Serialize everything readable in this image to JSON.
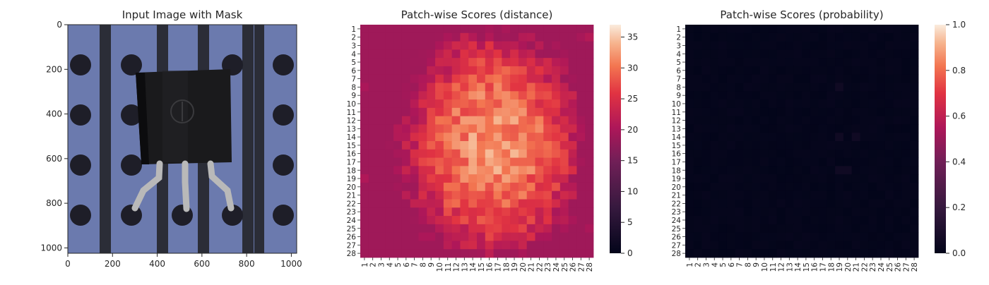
{
  "chart_data": [
    {
      "type": "image",
      "title": "Input Image with Mask",
      "xlim": [
        0,
        1024
      ],
      "ylim": [
        1024,
        0
      ],
      "x_ticks": [
        0,
        200,
        400,
        600,
        800,
        1000
      ],
      "y_ticks": [
        0,
        200,
        400,
        600,
        800,
        1000
      ],
      "content": "transistor on perforated board"
    },
    {
      "type": "heatmap",
      "title": "Patch-wise Scores (distance)",
      "rows": 28,
      "cols": 28,
      "row_labels": [
        "1",
        "2",
        "3",
        "4",
        "5",
        "6",
        "7",
        "8",
        "9",
        "10",
        "11",
        "12",
        "13",
        "14",
        "15",
        "16",
        "17",
        "18",
        "19",
        "20",
        "21",
        "22",
        "23",
        "24",
        "25",
        "26",
        "27",
        "28"
      ],
      "col_labels": [
        "1",
        "2",
        "3",
        "4",
        "5",
        "6",
        "7",
        "8",
        "9",
        "10",
        "11",
        "12",
        "13",
        "14",
        "15",
        "16",
        "17",
        "18",
        "19",
        "20",
        "21",
        "22",
        "23",
        "24",
        "25",
        "26",
        "27",
        "28"
      ],
      "colorbar": {
        "vmin": 0,
        "vmax": 37,
        "ticks": [
          0,
          5,
          10,
          15,
          20,
          25,
          30,
          35
        ]
      },
      "colormap": "rocket",
      "value_range_observed": [
        19,
        37
      ],
      "high_region": "center and center-right (rows 4-26, cols 7-24)",
      "low_spots": "left edge column 1-2, right edge column 27-28, bottom row"
    },
    {
      "type": "heatmap",
      "title": "Patch-wise Scores (probability)",
      "rows": 28,
      "cols": 28,
      "row_labels": [
        "1",
        "2",
        "3",
        "4",
        "5",
        "6",
        "7",
        "8",
        "9",
        "10",
        "11",
        "12",
        "13",
        "14",
        "15",
        "16",
        "17",
        "18",
        "19",
        "20",
        "21",
        "22",
        "23",
        "24",
        "25",
        "26",
        "27",
        "28"
      ],
      "col_labels": [
        "1",
        "2",
        "3",
        "4",
        "5",
        "6",
        "7",
        "8",
        "9",
        "10",
        "11",
        "12",
        "13",
        "14",
        "15",
        "16",
        "17",
        "18",
        "19",
        "20",
        "21",
        "22",
        "23",
        "24",
        "25",
        "26",
        "27",
        "28"
      ],
      "colorbar": {
        "vmin": 0.0,
        "vmax": 1.0,
        "ticks": [
          "0.0",
          "0.2",
          "0.4",
          "0.6",
          "0.8",
          "1.0"
        ]
      },
      "colormap": "rocket",
      "value_range_observed": [
        0.0,
        0.05
      ],
      "note": "nearly all cells near 0"
    }
  ],
  "colors": {
    "board": "#6b7aae",
    "stripe": "#2b2d37",
    "hole": "#1e1e28",
    "component": "#1a1a1c",
    "lead": "#b9b9b9"
  }
}
